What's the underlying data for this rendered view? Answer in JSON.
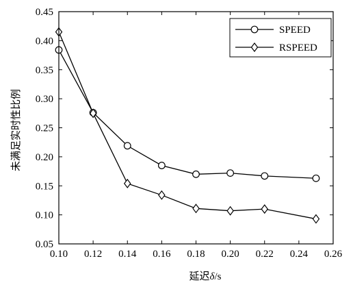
{
  "chart_data": {
    "type": "line",
    "xlabel_prefix": "延迟",
    "xlabel_symbol": "δ",
    "xlabel_suffix": "/s",
    "ylabel": "未满足实时性比例",
    "xlim": [
      0.1,
      0.26
    ],
    "ylim": [
      0.05,
      0.45
    ],
    "xticks": [
      "0.10",
      "0.12",
      "0.14",
      "0.16",
      "0.18",
      "0.20",
      "0.22",
      "0.24",
      "0.26"
    ],
    "yticks": [
      "0.05",
      "0.10",
      "0.15",
      "0.20",
      "0.25",
      "0.30",
      "0.35",
      "0.40",
      "0.45"
    ],
    "grid": false,
    "legend_position": "top-right",
    "series": [
      {
        "name": "SPEED",
        "marker": "circle",
        "x": [
          0.1,
          0.12,
          0.14,
          0.16,
          0.18,
          0.2,
          0.22,
          0.25
        ],
        "y": [
          0.384,
          0.276,
          0.219,
          0.185,
          0.17,
          0.172,
          0.167,
          0.163
        ]
      },
      {
        "name": "RSPEED",
        "marker": "diamond",
        "x": [
          0.1,
          0.12,
          0.14,
          0.16,
          0.18,
          0.2,
          0.22,
          0.25
        ],
        "y": [
          0.415,
          0.275,
          0.154,
          0.134,
          0.111,
          0.107,
          0.11,
          0.093
        ]
      }
    ]
  }
}
